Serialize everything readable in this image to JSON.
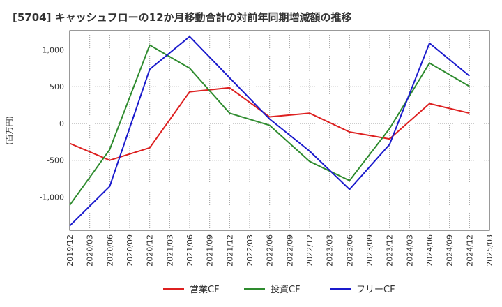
{
  "chart_data": {
    "type": "line",
    "title": "[5704]  キャッシュフローの12か月移動合計の対前年同期増減額の推移",
    "ylabel": "(百万円)",
    "xlabel": "",
    "ylim": [
      -1450,
      1260
    ],
    "yticks": [
      1000,
      500,
      0,
      -500,
      -1000
    ],
    "ytick_labels": [
      "1,000",
      "500",
      "0",
      "-500",
      "-1,000"
    ],
    "x_tick_labels": [
      "2019/12",
      "2020/03",
      "2020/06",
      "2020/09",
      "2020/12",
      "2021/03",
      "2021/06",
      "2021/09",
      "2021/12",
      "2022/03",
      "2022/06",
      "2022/09",
      "2022/12",
      "2023/03",
      "2023/06",
      "2023/09",
      "2023/12",
      "2024/03",
      "2024/06",
      "2024/09",
      "2024/12",
      "2025/03"
    ],
    "grid": true,
    "legend_position": "bottom",
    "series": [
      {
        "name": "営業CF",
        "color": "#dd2020",
        "points": [
          [
            "2019/12",
            -270
          ],
          [
            "2020/06",
            -500
          ],
          [
            "2020/12",
            -330
          ],
          [
            "2021/06",
            430
          ],
          [
            "2021/12",
            485
          ],
          [
            "2022/06",
            90
          ],
          [
            "2022/12",
            140
          ],
          [
            "2023/06",
            -115
          ],
          [
            "2023/12",
            -210
          ],
          [
            "2024/06",
            270
          ],
          [
            "2024/12",
            140
          ]
        ]
      },
      {
        "name": "投資CF",
        "color": "#2e8b2e",
        "points": [
          [
            "2019/12",
            -1110
          ],
          [
            "2020/06",
            -355
          ],
          [
            "2020/12",
            1065
          ],
          [
            "2021/06",
            750
          ],
          [
            "2021/12",
            140
          ],
          [
            "2022/06",
            -25
          ],
          [
            "2022/12",
            -515
          ],
          [
            "2023/06",
            -775
          ],
          [
            "2023/12",
            -70
          ],
          [
            "2024/06",
            820
          ],
          [
            "2024/12",
            505
          ]
        ]
      },
      {
        "name": "フリーCF",
        "color": "#1a1acc",
        "points": [
          [
            "2019/12",
            -1390
          ],
          [
            "2020/06",
            -855
          ],
          [
            "2020/12",
            735
          ],
          [
            "2021/06",
            1180
          ],
          [
            "2021/12",
            620
          ],
          [
            "2022/06",
            60
          ],
          [
            "2022/12",
            -375
          ],
          [
            "2023/06",
            -895
          ],
          [
            "2023/12",
            -285
          ],
          [
            "2024/06",
            1090
          ],
          [
            "2024/12",
            645
          ]
        ]
      }
    ]
  }
}
